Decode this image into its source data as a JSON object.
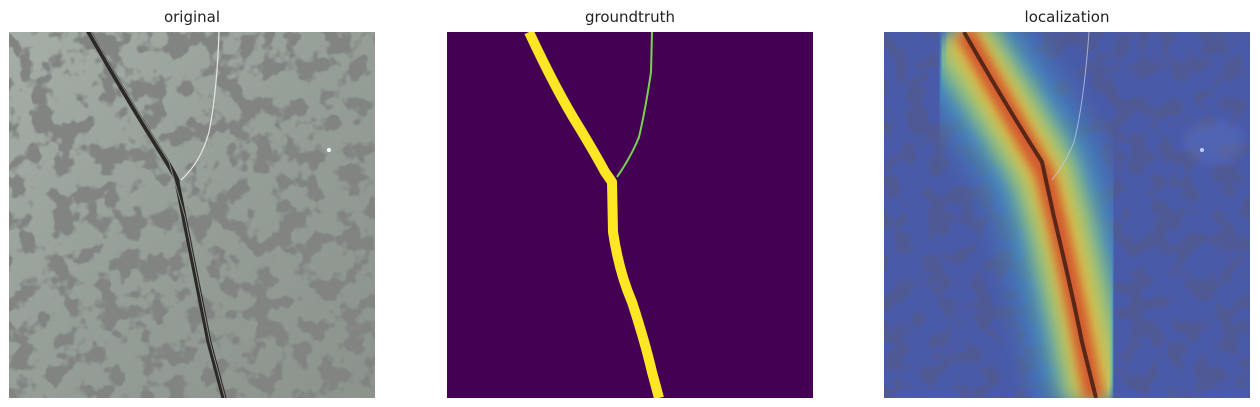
{
  "panels": [
    {
      "title": "original"
    },
    {
      "title": "groundtruth"
    },
    {
      "title": "localization"
    }
  ],
  "colors": {
    "stone_base": "#9aa39b",
    "stone_speckle": "#3d3f3c",
    "mask_background": "#440154",
    "mask_foreground": "#fde725",
    "heat_cool": "#2a3a8c",
    "heat_hot": "#c83a20"
  }
}
